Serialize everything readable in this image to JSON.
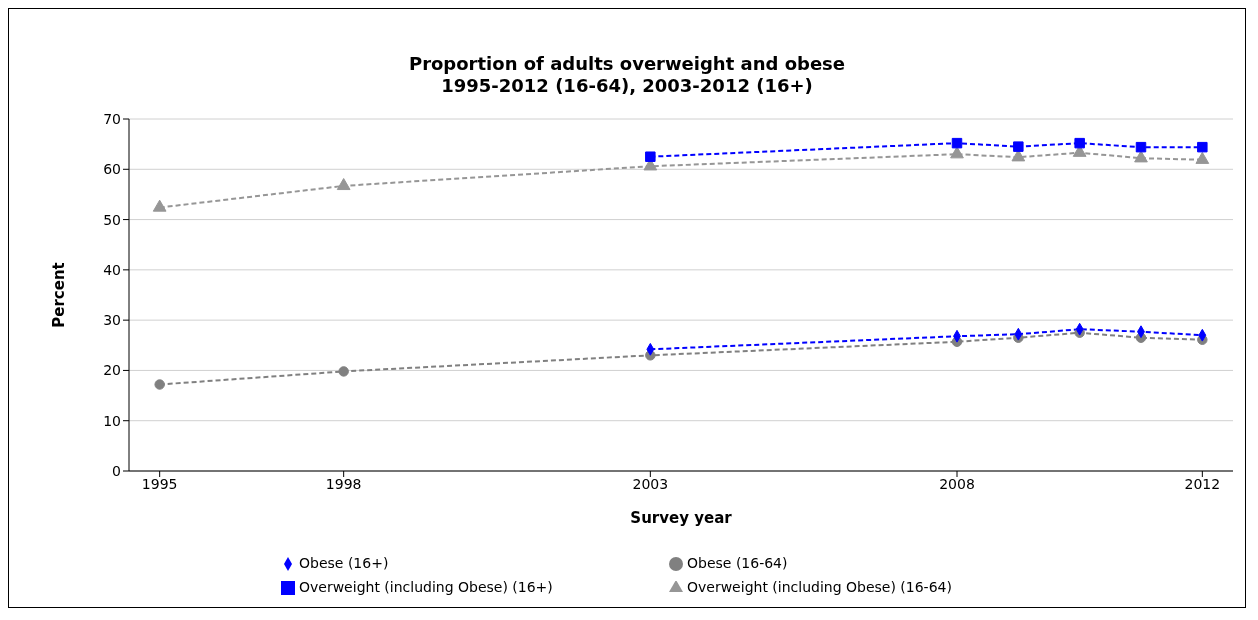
{
  "chart_data": {
    "type": "line",
    "title": "Proportion of adults overweight and obese\n1995-2012 (16-64), 2003-2012 (16+)",
    "xlabel": "Survey year",
    "ylabel": "Percent",
    "xlim": [
      1994.5,
      2012.5
    ],
    "xticks": [
      1995,
      1998,
      2003,
      2008,
      2012
    ],
    "ylim": [
      0,
      70
    ],
    "yticks": [
      0,
      10,
      20,
      30,
      40,
      50,
      60,
      70
    ],
    "grid": "y",
    "legend": "bottom",
    "line_style": "dashed",
    "series": [
      {
        "name": "Obese (16-64)",
        "color": "#808080",
        "marker": "circle",
        "x": [
          1995,
          1998,
          2003,
          2008,
          2009,
          2010,
          2011,
          2012
        ],
        "values": [
          17.2,
          19.8,
          23.0,
          25.7,
          26.5,
          27.5,
          26.5,
          26.1
        ]
      },
      {
        "name": "Overweight (including Obese) (16-64)",
        "color": "#969696",
        "marker": "triangle",
        "x": [
          1995,
          1998,
          2003,
          2008,
          2009,
          2010,
          2011,
          2012
        ],
        "values": [
          52.4,
          56.7,
          60.6,
          63.0,
          62.4,
          63.3,
          62.2,
          61.9
        ]
      },
      {
        "name": "Obese (16+)",
        "color": "#0000ff",
        "marker": "diamond",
        "x": [
          2003,
          2008,
          2009,
          2010,
          2011,
          2012
        ],
        "values": [
          24.2,
          26.8,
          27.2,
          28.2,
          27.7,
          27.0
        ]
      },
      {
        "name": "Overweight (including Obese) (16+)",
        "color": "#0000ff",
        "marker": "square",
        "x": [
          2003,
          2008,
          2009,
          2010,
          2011,
          2012
        ],
        "values": [
          62.5,
          65.2,
          64.5,
          65.2,
          64.4,
          64.4
        ]
      }
    ]
  }
}
